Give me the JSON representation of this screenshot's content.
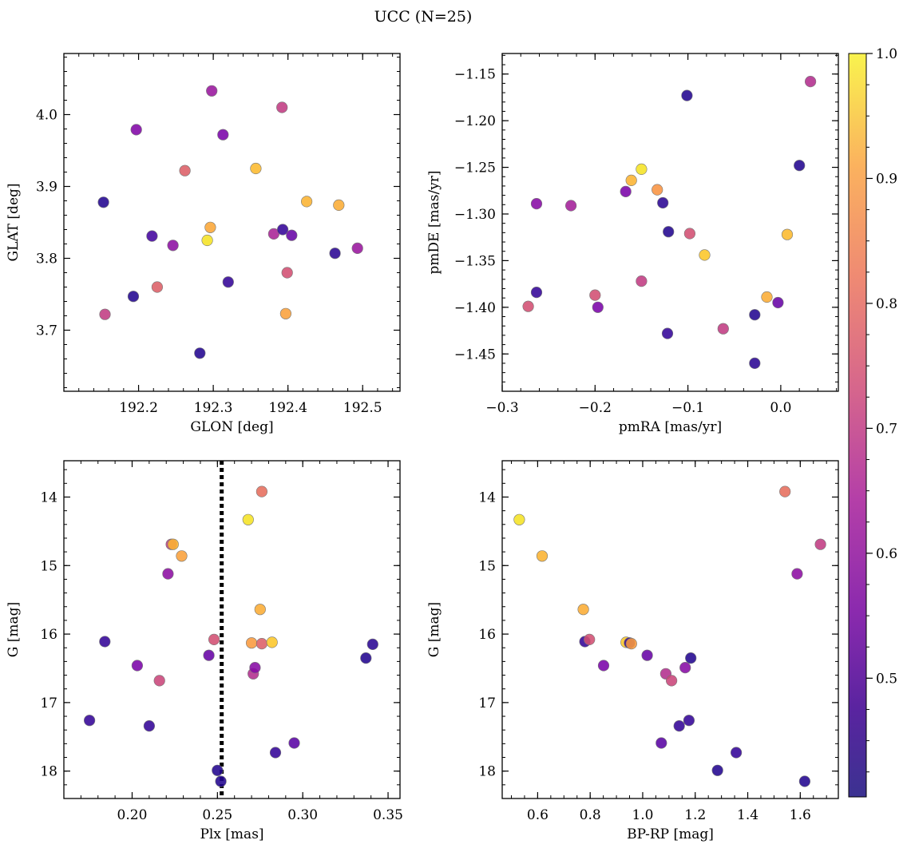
{
  "figure": {
    "title": "UCC (N=25)"
  },
  "colorbar": {
    "colormap": "plasma",
    "range": [
      0.405,
      1.0
    ],
    "ticks": [
      0.5,
      0.6,
      0.7,
      0.8,
      0.9,
      1.0
    ],
    "tick_labels": [
      "0.5",
      "0.6",
      "0.7",
      "0.8",
      "0.9",
      "1.0"
    ]
  },
  "chart_data": [
    {
      "type": "scatter",
      "name": "galactic-coords",
      "xlabel": "GLON [deg]",
      "ylabel": "GLAT [deg]",
      "xlim": [
        192.1,
        192.55
      ],
      "ylim": [
        3.615,
        4.085
      ],
      "invert_y": false,
      "xticks": [
        192.2,
        192.3,
        192.4,
        192.5
      ],
      "xtick_labels": [
        "192.2",
        "192.3",
        "192.4",
        "192.5"
      ],
      "yticks": [
        3.7,
        3.8,
        3.9,
        4.0
      ],
      "ytick_labels": [
        "3.7",
        "3.8",
        "3.9",
        "4.0"
      ],
      "xminor": 0.02,
      "yminor": 0.02,
      "points": [
        {
          "x": 192.153,
          "y": 3.878,
          "c": 0.43
        },
        {
          "x": 192.155,
          "y": 3.722,
          "c": 0.68
        },
        {
          "x": 192.193,
          "y": 3.747,
          "c": 0.43
        },
        {
          "x": 192.197,
          "y": 3.979,
          "c": 0.56
        },
        {
          "x": 192.218,
          "y": 3.831,
          "c": 0.47
        },
        {
          "x": 192.225,
          "y": 3.76,
          "c": 0.75
        },
        {
          "x": 192.246,
          "y": 3.818,
          "c": 0.58
        },
        {
          "x": 192.262,
          "y": 3.922,
          "c": 0.75
        },
        {
          "x": 192.282,
          "y": 3.668,
          "c": 0.43
        },
        {
          "x": 192.292,
          "y": 3.825,
          "c": 0.97
        },
        {
          "x": 192.296,
          "y": 3.843,
          "c": 0.88
        },
        {
          "x": 192.298,
          "y": 4.033,
          "c": 0.6
        },
        {
          "x": 192.313,
          "y": 3.972,
          "c": 0.55
        },
        {
          "x": 192.32,
          "y": 3.767,
          "c": 0.45
        },
        {
          "x": 192.357,
          "y": 3.925,
          "c": 0.91
        },
        {
          "x": 192.381,
          "y": 3.834,
          "c": 0.63
        },
        {
          "x": 192.392,
          "y": 4.01,
          "c": 0.68
        },
        {
          "x": 192.393,
          "y": 3.84,
          "c": 0.45
        },
        {
          "x": 192.397,
          "y": 3.723,
          "c": 0.87
        },
        {
          "x": 192.399,
          "y": 3.78,
          "c": 0.72
        },
        {
          "x": 192.405,
          "y": 3.832,
          "c": 0.52
        },
        {
          "x": 192.425,
          "y": 3.879,
          "c": 0.9
        },
        {
          "x": 192.463,
          "y": 3.807,
          "c": 0.44
        },
        {
          "x": 192.468,
          "y": 3.874,
          "c": 0.89
        },
        {
          "x": 192.493,
          "y": 3.814,
          "c": 0.6
        }
      ]
    },
    {
      "type": "scatter",
      "name": "proper-motion",
      "xlabel": "pmRA [mas/yr]",
      "ylabel": "pmDE [mas/yr]",
      "xlim": [
        -0.3,
        0.062
      ],
      "ylim": [
        -1.49,
        -1.128
      ],
      "invert_y": false,
      "xticks": [
        -0.3,
        -0.2,
        -0.1,
        0.0
      ],
      "xtick_labels": [
        "−0.3",
        "−0.2",
        "−0.1",
        "0.0"
      ],
      "yticks": [
        -1.45,
        -1.4,
        -1.35,
        -1.3,
        -1.25,
        -1.2,
        -1.15
      ],
      "ytick_labels": [
        "−1.45",
        "−1.40",
        "−1.35",
        "−1.30",
        "−1.25",
        "−1.20",
        "−1.15"
      ],
      "xminor": 0.02,
      "yminor": 0.01,
      "points": [
        {
          "x": -0.272,
          "y": -1.399,
          "c": 0.72
        },
        {
          "x": -0.263,
          "y": -1.289,
          "c": 0.57
        },
        {
          "x": -0.263,
          "y": -1.384,
          "c": 0.45
        },
        {
          "x": -0.226,
          "y": -1.291,
          "c": 0.62
        },
        {
          "x": -0.2,
          "y": -1.387,
          "c": 0.72
        },
        {
          "x": -0.197,
          "y": -1.4,
          "c": 0.55
        },
        {
          "x": -0.167,
          "y": -1.276,
          "c": 0.55
        },
        {
          "x": -0.161,
          "y": -1.264,
          "c": 0.9
        },
        {
          "x": -0.15,
          "y": -1.252,
          "c": 0.97
        },
        {
          "x": -0.15,
          "y": -1.372,
          "c": 0.68
        },
        {
          "x": -0.133,
          "y": -1.274,
          "c": 0.85
        },
        {
          "x": -0.127,
          "y": -1.288,
          "c": 0.44
        },
        {
          "x": -0.121,
          "y": -1.319,
          "c": 0.43
        },
        {
          "x": -0.122,
          "y": -1.428,
          "c": 0.45
        },
        {
          "x": -0.101,
          "y": -1.173,
          "c": 0.43
        },
        {
          "x": -0.098,
          "y": -1.321,
          "c": 0.72
        },
        {
          "x": -0.082,
          "y": -1.344,
          "c": 0.93
        },
        {
          "x": -0.062,
          "y": -1.423,
          "c": 0.68
        },
        {
          "x": -0.028,
          "y": -1.408,
          "c": 0.43
        },
        {
          "x": -0.028,
          "y": -1.46,
          "c": 0.44
        },
        {
          "x": -0.015,
          "y": -1.389,
          "c": 0.89
        },
        {
          "x": -0.003,
          "y": -1.395,
          "c": 0.52
        },
        {
          "x": 0.007,
          "y": -1.322,
          "c": 0.91
        },
        {
          "x": 0.02,
          "y": -1.248,
          "c": 0.43
        },
        {
          "x": 0.032,
          "y": -1.158,
          "c": 0.65
        }
      ]
    },
    {
      "type": "scatter",
      "name": "parallax-magnitude",
      "xlabel": "Plx [mas]",
      "ylabel": "G [mag]",
      "xlim": [
        0.16,
        0.357
      ],
      "ylim": [
        13.47,
        18.4
      ],
      "invert_y": true,
      "xticks": [
        0.2,
        0.25,
        0.3,
        0.35
      ],
      "xtick_labels": [
        "0.20",
        "0.25",
        "0.30",
        "0.35"
      ],
      "yticks": [
        14,
        15,
        16,
        17,
        18
      ],
      "ytick_labels": [
        "14",
        "15",
        "16",
        "17",
        "18"
      ],
      "xminor": 0.01,
      "yminor": 0.2,
      "vline": {
        "x": 0.2525,
        "style": "dotted",
        "color": "#000000"
      },
      "points": [
        {
          "x": 0.175,
          "y": 17.26,
          "c": 0.45
        },
        {
          "x": 0.184,
          "y": 16.11,
          "c": 0.45
        },
        {
          "x": 0.203,
          "y": 16.46,
          "c": 0.55
        },
        {
          "x": 0.21,
          "y": 17.34,
          "c": 0.45
        },
        {
          "x": 0.216,
          "y": 16.68,
          "c": 0.7
        },
        {
          "x": 0.221,
          "y": 15.12,
          "c": 0.58
        },
        {
          "x": 0.223,
          "y": 14.69,
          "c": 0.68
        },
        {
          "x": 0.224,
          "y": 14.69,
          "c": 0.9
        },
        {
          "x": 0.229,
          "y": 14.86,
          "c": 0.87
        },
        {
          "x": 0.245,
          "y": 16.31,
          "c": 0.52
        },
        {
          "x": 0.248,
          "y": 16.08,
          "c": 0.72
        },
        {
          "x": 0.25,
          "y": 17.99,
          "c": 0.43
        },
        {
          "x": 0.252,
          "y": 18.15,
          "c": 0.43
        },
        {
          "x": 0.268,
          "y": 14.33,
          "c": 0.97
        },
        {
          "x": 0.27,
          "y": 16.13,
          "c": 0.86
        },
        {
          "x": 0.271,
          "y": 16.58,
          "c": 0.65
        },
        {
          "x": 0.272,
          "y": 16.49,
          "c": 0.57
        },
        {
          "x": 0.275,
          "y": 15.64,
          "c": 0.89
        },
        {
          "x": 0.276,
          "y": 13.92,
          "c": 0.78
        },
        {
          "x": 0.276,
          "y": 16.14,
          "c": 0.75
        },
        {
          "x": 0.282,
          "y": 16.12,
          "c": 0.93
        },
        {
          "x": 0.284,
          "y": 17.73,
          "c": 0.45
        },
        {
          "x": 0.295,
          "y": 17.59,
          "c": 0.5
        },
        {
          "x": 0.337,
          "y": 16.35,
          "c": 0.43
        },
        {
          "x": 0.341,
          "y": 16.15,
          "c": 0.44
        }
      ]
    },
    {
      "type": "scatter",
      "name": "color-magnitude",
      "xlabel": "BP-RP [mag]",
      "ylabel": "G [mag]",
      "xlim": [
        0.465,
        1.745
      ],
      "ylim": [
        13.47,
        18.4
      ],
      "invert_y": true,
      "xticks": [
        0.6,
        0.8,
        1.0,
        1.2,
        1.4,
        1.6
      ],
      "xtick_labels": [
        "0.6",
        "0.8",
        "1.0",
        "1.2",
        "1.4",
        "1.6"
      ],
      "yticks": [
        14,
        15,
        16,
        17,
        18
      ],
      "ytick_labels": [
        "14",
        "15",
        "16",
        "17",
        "18"
      ],
      "xminor": 0.05,
      "yminor": 0.2,
      "points": [
        {
          "x": 0.53,
          "y": 14.33,
          "c": 0.97
        },
        {
          "x": 0.617,
          "y": 14.86,
          "c": 0.9
        },
        {
          "x": 0.774,
          "y": 15.64,
          "c": 0.89
        },
        {
          "x": 0.78,
          "y": 16.11,
          "c": 0.45
        },
        {
          "x": 0.797,
          "y": 16.08,
          "c": 0.72
        },
        {
          "x": 0.851,
          "y": 16.46,
          "c": 0.55
        },
        {
          "x": 0.937,
          "y": 16.12,
          "c": 0.93
        },
        {
          "x": 0.95,
          "y": 16.13,
          "c": 0.45
        },
        {
          "x": 0.957,
          "y": 16.14,
          "c": 0.86
        },
        {
          "x": 1.017,
          "y": 16.31,
          "c": 0.52
        },
        {
          "x": 1.071,
          "y": 17.59,
          "c": 0.5
        },
        {
          "x": 1.088,
          "y": 16.58,
          "c": 0.65
        },
        {
          "x": 1.11,
          "y": 16.68,
          "c": 0.7
        },
        {
          "x": 1.139,
          "y": 17.34,
          "c": 0.45
        },
        {
          "x": 1.162,
          "y": 16.49,
          "c": 0.57
        },
        {
          "x": 1.176,
          "y": 17.26,
          "c": 0.45
        },
        {
          "x": 1.183,
          "y": 16.35,
          "c": 0.43
        },
        {
          "x": 1.285,
          "y": 17.99,
          "c": 0.43
        },
        {
          "x": 1.356,
          "y": 17.73,
          "c": 0.45
        },
        {
          "x": 1.542,
          "y": 13.92,
          "c": 0.78
        },
        {
          "x": 1.588,
          "y": 15.12,
          "c": 0.58
        },
        {
          "x": 1.617,
          "y": 18.15,
          "c": 0.43
        },
        {
          "x": 1.677,
          "y": 14.69,
          "c": 0.68
        }
      ]
    }
  ]
}
